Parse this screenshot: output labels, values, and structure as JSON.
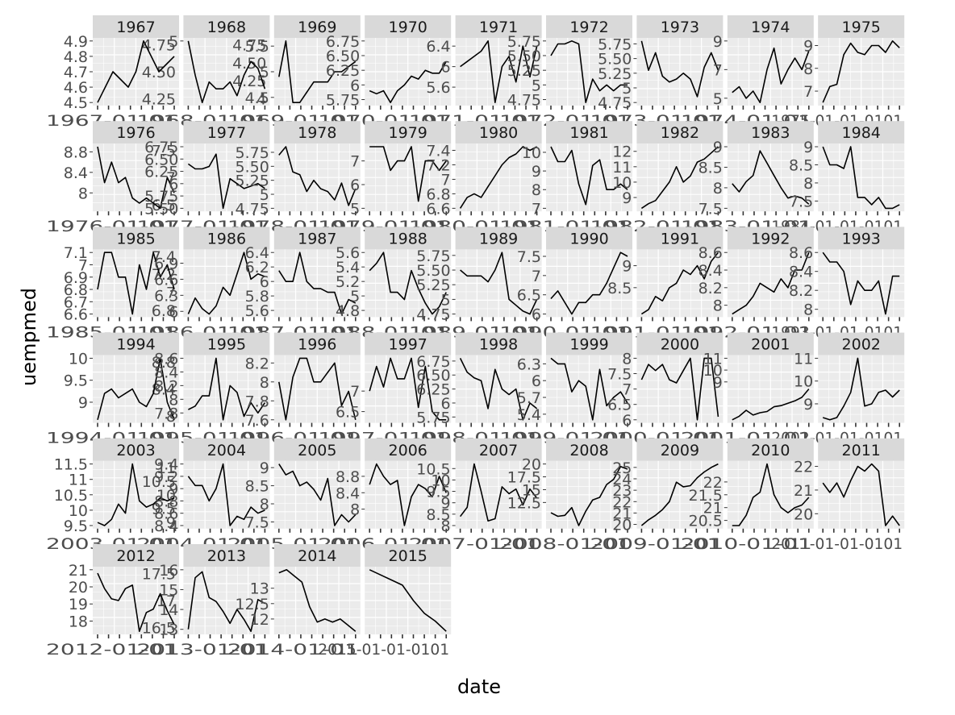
{
  "chart_data": {
    "type": "line",
    "facet": "year",
    "xlabel": "date",
    "ylabel": "uempmed",
    "series_color": "#000000",
    "panel_background": "#ebebeb",
    "strip_background": "#d9d9d9",
    "grid_color": "#ffffff",
    "x_tick_labels_per_panel": "0101",
    "panels": [
      {
        "year": "1967",
        "yticks": [
          "4.5",
          "4.6",
          "4.7",
          "4.8",
          "4.9"
        ],
        "yticks_alt": [
          "4.25",
          "4.50",
          "4.75"
        ],
        "values": [
          4.5,
          4.6,
          4.7,
          4.65,
          4.6,
          4.7,
          4.9,
          4.8,
          4.7,
          4.75,
          4.8
        ]
      },
      {
        "year": "1968",
        "yticks": [
          "5"
        ],
        "yticks_alt": [
          "4",
          "4.25",
          "4.50",
          "4.75"
        ],
        "values": [
          5.0,
          4.5,
          4.1,
          4.4,
          4.3,
          4.3,
          4.4,
          4.2,
          4.5,
          4.7,
          4.6,
          4.3
        ]
      },
      {
        "year": "1969",
        "yticks": [
          "4.5",
          "5",
          "5.5"
        ],
        "values": [
          4.9,
          5.6,
          4.4,
          4.4,
          4.6,
          4.8,
          4.8,
          4.8,
          5.0,
          5.0,
          5.1,
          5.2
        ]
      },
      {
        "year": "1970",
        "yticks": [
          "5.75",
          "6",
          "6.25",
          "6.50",
          "6.75"
        ],
        "values": [
          5.9,
          5.85,
          5.9,
          5.7,
          5.9,
          6.0,
          6.15,
          6.1,
          6.25,
          6.2,
          6.2,
          6.4
        ]
      },
      {
        "year": "1971",
        "yticks": [
          "5.6",
          "6",
          "6.4"
        ],
        "values": [
          6.0,
          6.1,
          6.2,
          6.3,
          6.5,
          5.3,
          6.0,
          6.2,
          5.7,
          6.4,
          5.8,
          6.4
        ]
      },
      {
        "year": "1972",
        "yticks": [
          "4.75",
          "5",
          "5.25",
          "5.50",
          "5.75"
        ],
        "values": [
          5.5,
          5.7,
          5.7,
          5.75,
          5.7,
          4.7,
          5.1,
          4.9,
          5.0,
          4.9,
          5.0,
          5.0
        ]
      },
      {
        "year": "1973",
        "yticks": [
          "4.75",
          "5",
          "5.25",
          "5.50",
          "5.75"
        ],
        "values": [
          5.8,
          5.3,
          5.6,
          5.2,
          5.1,
          5.15,
          5.25,
          5.15,
          4.85,
          5.35,
          5.6,
          5.3
        ]
      },
      {
        "year": "1974",
        "yticks": [
          "5",
          "7",
          "9"
        ],
        "values": [
          5.4,
          5.8,
          5.0,
          5.5,
          4.7,
          7.0,
          8.5,
          6.0,
          7.0,
          7.8,
          7.0,
          8.3
        ]
      },
      {
        "year": "1975",
        "yticks": [
          "7",
          "8",
          "9"
        ],
        "values": [
          6.5,
          7.2,
          7.3,
          8.6,
          9.1,
          8.7,
          8.6,
          9.0,
          9.0,
          8.7,
          9.2,
          8.9
        ]
      },
      {
        "year": "1976",
        "yticks": [
          "8",
          "8.4",
          "8.8"
        ],
        "yticks_alt": [
          "6.5",
          "7",
          "7.5"
        ],
        "values": [
          8.9,
          8.2,
          8.6,
          8.2,
          8.3,
          7.9,
          7.8,
          7.9,
          7.8,
          7.7,
          8.3,
          8.0
        ]
      },
      {
        "year": "1977",
        "yticks": [
          "5.50",
          "5.75",
          "6",
          "6.25",
          "6.50",
          "6.75"
        ],
        "values": [
          6.4,
          6.3,
          6.3,
          6.35,
          6.6,
          5.5,
          6.1,
          6.0,
          5.9,
          5.95,
          6.0,
          5.9
        ]
      },
      {
        "year": "1978",
        "yticks": [
          "4.75",
          "5",
          "5.25",
          "5.50",
          "5.75"
        ],
        "values": [
          5.7,
          5.85,
          5.4,
          5.35,
          5.05,
          5.25,
          5.1,
          5.05,
          4.9,
          5.2,
          4.8,
          5.1
        ]
      },
      {
        "year": "1979",
        "yticks": [
          "5",
          "6",
          "7"
        ],
        "values": [
          7.6,
          7.6,
          7.6,
          6.6,
          7.0,
          7.0,
          7.6,
          5.3,
          7.0,
          7.0,
          6.6,
          7.0
        ]
      },
      {
        "year": "1980",
        "yticks": [
          "6.6",
          "6.8",
          "7",
          "7.2",
          "7.4"
        ],
        "values": [
          6.6,
          6.75,
          6.8,
          6.75,
          6.9,
          7.05,
          7.2,
          7.3,
          7.35,
          7.45,
          7.4,
          7.45
        ]
      },
      {
        "year": "1981",
        "yticks": [
          "7",
          "8",
          "9",
          "10"
        ],
        "values": [
          10.3,
          9.5,
          9.5,
          10.1,
          8.3,
          7.2,
          9.3,
          9.6,
          8.0,
          8.0,
          8.3,
          8.0
        ]
      },
      {
        "year": "1982",
        "yticks": [
          "9",
          "10",
          "11",
          "12"
        ],
        "values": [
          8.3,
          8.6,
          8.8,
          9.4,
          10.0,
          11.0,
          10.0,
          10.4,
          11.3,
          11.5,
          11.9,
          12.3
        ]
      },
      {
        "year": "1983",
        "yticks": [
          "7.5",
          "8",
          "8.5",
          "9"
        ],
        "values": [
          8.1,
          7.9,
          8.15,
          8.3,
          8.9,
          8.6,
          8.3,
          8.0,
          7.75,
          7.8,
          7.75,
          7.6
        ]
      },
      {
        "year": "1984",
        "yticks": [
          "7.5",
          "8",
          "8.5",
          "9"
        ],
        "values": [
          9.0,
          8.5,
          8.5,
          8.4,
          9.0,
          7.6,
          7.6,
          7.4,
          7.6,
          7.3,
          7.3,
          7.4
        ]
      },
      {
        "year": "1985",
        "yticks": [
          "6.6",
          "6.7",
          "6.8",
          "6.9",
          "7",
          "7.1"
        ],
        "yticks_alt": [
          "6.8",
          "7",
          "7.2",
          "7.4"
        ],
        "values": [
          6.8,
          7.1,
          7.1,
          6.9,
          6.9,
          6.6,
          7.0,
          6.8,
          7.1,
          6.9,
          7.0,
          6.8
        ]
      },
      {
        "year": "1986",
        "yticks": [
          "6",
          "6.3",
          "6.6",
          "6.9"
        ],
        "values": [
          5.95,
          6.25,
          6.05,
          5.95,
          6.1,
          6.45,
          6.3,
          6.7,
          7.1,
          6.6,
          6.7,
          6.65
        ]
      },
      {
        "year": "1987",
        "yticks": [
          "5.6",
          "5.8",
          "6",
          "6.2",
          "6.4"
        ],
        "values": [
          6.15,
          6.0,
          6.0,
          6.4,
          6.0,
          5.9,
          5.9,
          5.85,
          5.85,
          5.55,
          5.75,
          5.7
        ]
      },
      {
        "year": "1988",
        "yticks": [
          "4.8",
          "5",
          "5.2",
          "5.4",
          "5.6"
        ],
        "values": [
          5.35,
          5.45,
          5.6,
          5.05,
          5.05,
          4.95,
          5.35,
          5.1,
          4.9,
          4.75,
          4.85,
          5.05
        ]
      },
      {
        "year": "1989",
        "yticks": [
          "4.75",
          "5",
          "5.25",
          "5.50",
          "5.75"
        ],
        "values": [
          5.5,
          5.4,
          5.4,
          5.4,
          5.3,
          5.5,
          5.8,
          5.0,
          4.9,
          4.8,
          4.75,
          5.0
        ]
      },
      {
        "year": "1990",
        "yticks": [
          "6",
          "6.5",
          "7",
          "7.5"
        ],
        "values": [
          6.4,
          6.6,
          6.3,
          6.0,
          6.3,
          6.3,
          6.5,
          6.5,
          6.8,
          7.2,
          7.6,
          7.5
        ]
      },
      {
        "year": "1991",
        "yticks": [
          "8.5",
          "9"
        ],
        "values": [
          7.9,
          8.0,
          8.3,
          8.2,
          8.5,
          8.6,
          8.9,
          8.8,
          9.0,
          8.7,
          9.1,
          9.3
        ]
      },
      {
        "year": "1992",
        "yticks": [
          "8",
          "8.2",
          "8.4",
          "8.6"
        ],
        "values": [
          7.9,
          7.95,
          8.0,
          8.1,
          8.25,
          8.2,
          8.15,
          8.3,
          8.2,
          8.4,
          8.4,
          8.6
        ]
      },
      {
        "year": "1993",
        "yticks": [
          "8",
          "8.2",
          "8.4",
          "8.6"
        ],
        "values": [
          8.6,
          8.5,
          8.5,
          8.4,
          8.05,
          8.3,
          8.2,
          8.2,
          8.3,
          7.95,
          8.35,
          8.35
        ]
      },
      {
        "year": "1994",
        "yticks": [
          "9",
          "9.5",
          "10"
        ],
        "yticks_alt": [
          "8",
          "8.4",
          "8.8"
        ],
        "values": [
          8.6,
          9.2,
          9.3,
          9.1,
          9.2,
          9.3,
          9.0,
          8.9,
          9.2,
          10.0,
          9.0,
          8.6
        ]
      },
      {
        "year": "1995",
        "yticks": [
          "7.8",
          "8",
          "8.2",
          "8.4",
          "8.6"
        ],
        "values": [
          7.85,
          7.9,
          8.05,
          8.05,
          8.6,
          7.7,
          8.2,
          8.1,
          7.75,
          7.95,
          7.8,
          7.95
        ]
      },
      {
        "year": "1996",
        "yticks": [
          "7.6",
          "7.8",
          "8",
          "8.2"
        ],
        "values": [
          8.0,
          7.6,
          8.05,
          8.25,
          8.25,
          8.0,
          8.0,
          8.1,
          8.2,
          7.75,
          7.9,
          7.6
        ]
      },
      {
        "year": "1997",
        "yticks": [
          "6.5",
          "7"
        ],
        "values": [
          7.0,
          7.6,
          7.1,
          7.8,
          7.3,
          7.3,
          7.8,
          6.6,
          7.6,
          6.5,
          6.3,
          6.3
        ]
      },
      {
        "year": "1998",
        "yticks": [
          "5.75",
          "6",
          "6.25",
          "6.50",
          "6.75"
        ],
        "values": [
          6.8,
          6.55,
          6.45,
          6.4,
          5.9,
          6.6,
          6.25,
          6.15,
          6.25,
          5.7,
          6.0,
          5.9
        ]
      },
      {
        "year": "1999",
        "yticks": [
          "5.4",
          "5.7",
          "6",
          "6.3"
        ],
        "values": [
          6.4,
          6.3,
          6.3,
          5.8,
          6.0,
          5.9,
          5.3,
          6.2,
          5.55,
          5.7,
          5.8,
          5.6
        ]
      },
      {
        "year": "2000",
        "yticks": [
          "6",
          "6.5",
          "7",
          "7.5",
          "8"
        ],
        "values": [
          7.3,
          7.8,
          7.6,
          7.8,
          7.3,
          7.2,
          7.6,
          8.0,
          6.0,
          8.0,
          8.0,
          6.1
        ]
      },
      {
        "year": "2001",
        "yticks": [
          "9",
          "10",
          "11"
        ],
        "values": [
          5.8,
          6.1,
          6.6,
          6.2,
          6.4,
          6.5,
          6.9,
          7.0,
          7.2,
          7.4,
          7.7,
          8.4
        ]
      },
      {
        "year": "2002",
        "yticks": [
          "9",
          "10",
          "11"
        ],
        "values": [
          8.4,
          8.3,
          8.4,
          8.9,
          9.5,
          11.0,
          8.9,
          9.0,
          9.5,
          9.6,
          9.3,
          9.6
        ]
      },
      {
        "year": "2003",
        "yticks": [
          "9.5",
          "10",
          "10.5",
          "11",
          "11.5"
        ],
        "yticks_alt": [
          "9",
          "9.5",
          "10",
          "10.5",
          "11"
        ],
        "values": [
          9.6,
          9.5,
          9.7,
          10.2,
          9.9,
          11.5,
          10.3,
          10.1,
          10.2,
          10.4,
          10.3,
          10.4
        ]
      },
      {
        "year": "2004",
        "yticks": [
          "8.4",
          "8.6",
          "8.8",
          "9",
          "9.2",
          "9.4"
        ],
        "values": [
          9.2,
          9.05,
          9.05,
          8.8,
          9.0,
          9.4,
          8.4,
          8.55,
          8.5,
          8.7,
          8.6,
          8.65
        ]
      },
      {
        "year": "2005",
        "yticks": [
          "7.5",
          "8",
          "8.5",
          "9"
        ],
        "values": [
          9.1,
          8.8,
          8.9,
          8.5,
          8.6,
          8.4,
          8.1,
          8.7,
          7.4,
          7.7,
          7.5,
          7.7
        ]
      },
      {
        "year": "2006",
        "yticks": [
          "8",
          "8.4",
          "8.8"
        ],
        "values": [
          8.6,
          9.1,
          8.8,
          8.6,
          8.7,
          7.6,
          8.3,
          8.6,
          8.5,
          8.3,
          8.8,
          8.4
        ]
      },
      {
        "year": "2007",
        "yticks": [
          "8",
          "8.5",
          "9",
          "9.5",
          "10",
          "10.5"
        ],
        "values": [
          8.4,
          8.8,
          10.7,
          9.5,
          8.2,
          8.3,
          9.7,
          9.4,
          9.6,
          8.9,
          9.6,
          9.2
        ]
      },
      {
        "year": "2008",
        "yticks": [
          "12.5",
          "15",
          "17.5",
          "20"
        ],
        "values": [
          10.5,
          9.8,
          10.0,
          11.5,
          8.0,
          10.8,
          13.0,
          13.5,
          16.0,
          17.0,
          19.5,
          19.0
        ]
      },
      {
        "year": "2009",
        "yticks": [
          "20",
          "21",
          "22",
          "23",
          "24",
          "25"
        ],
        "values": [
          19.9,
          20.4,
          20.8,
          21.3,
          22.0,
          23.7,
          23.3,
          23.4,
          24.1,
          24.6,
          25.0,
          25.3
        ]
      },
      {
        "year": "2010",
        "yticks": [
          "20.5",
          "21",
          "21.5",
          "22"
        ],
        "values": [
          20.3,
          20.3,
          20.7,
          21.4,
          21.6,
          22.7,
          21.5,
          21.0,
          20.8,
          21.0,
          21.1,
          21.4
        ]
      },
      {
        "year": "2011",
        "yticks": [
          "20",
          "21",
          "22"
        ],
        "values": [
          21.3,
          20.9,
          21.3,
          20.7,
          21.4,
          22.0,
          21.8,
          22.1,
          21.8,
          19.5,
          19.9,
          19.5
        ]
      },
      {
        "year": "2012",
        "yticks": [
          "18",
          "19",
          "20",
          "21"
        ],
        "yticks_alt": [
          "16.5",
          "17",
          "17.5"
        ],
        "values": [
          20.8,
          19.9,
          19.3,
          19.2,
          19.9,
          20.1,
          17.4,
          18.5,
          18.7,
          19.6,
          18.6,
          17.8
        ]
      },
      {
        "year": "2013",
        "yticks": [
          "13",
          "14",
          "15",
          "16"
        ],
        "values": [
          13.0,
          15.6,
          15.9,
          14.6,
          14.4,
          13.9,
          13.3,
          14.0,
          13.5,
          12.9,
          14.5,
          14.3
        ]
      },
      {
        "year": "2014",
        "yticks": [
          "12",
          "12.5",
          "13"
        ],
        "values": [
          13.5,
          13.6,
          13.4,
          13.2,
          12.4,
          11.9,
          12.0,
          11.9,
          12.0,
          11.8,
          11.6
        ]
      },
      {
        "year": "2015",
        "yticks": [],
        "values": [
          11.2,
          11.0,
          10.8,
          10.6,
          10.0,
          9.5,
          9.2,
          8.8
        ]
      }
    ]
  }
}
